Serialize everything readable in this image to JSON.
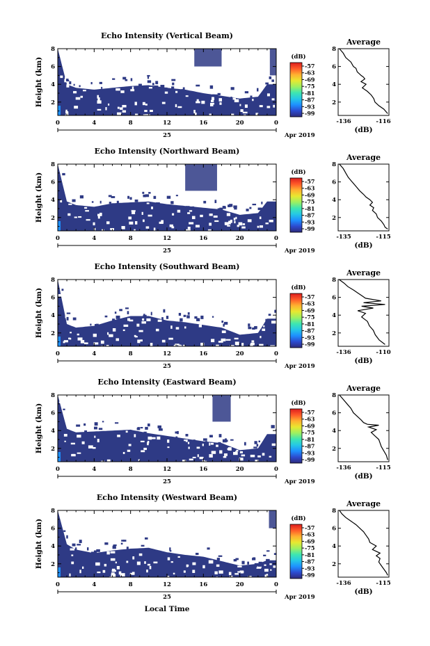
{
  "figure": {
    "xlabel": "Local Time",
    "date_day": "25",
    "date_month_year": "Apr 2019",
    "colorbar_unit": "(dB)",
    "colorbar_ticks": [
      "-57",
      "-63",
      "-69",
      "-75",
      "-81",
      "-87",
      "-93",
      "-99"
    ],
    "colors": {
      "background": "#ffffff",
      "main_echo": "#2e3a85",
      "strong_echo": "#1e90ff",
      "colormap": [
        "#2e2a7a",
        "#2c4bd0",
        "#1e90ff",
        "#25c8e6",
        "#3ee6b0",
        "#9ef060",
        "#e8e830",
        "#ffb030",
        "#ff5a28",
        "#dc1e1e"
      ]
    }
  },
  "chart_data": [
    {
      "type": "heatmap",
      "title": "Echo Intensity (Vertical Beam)",
      "ylabel": "Height (km)",
      "xlim": [
        0,
        24
      ],
      "ylim": [
        0.5,
        8
      ],
      "xticks": [
        "0",
        "4",
        "8",
        "12",
        "16",
        "20",
        "0"
      ],
      "yticks": [
        "2",
        "4",
        "6",
        "8"
      ],
      "echo_top_km": [
        [
          0,
          8.0
        ],
        [
          1,
          4.0
        ],
        [
          2,
          3.6
        ],
        [
          4,
          3.4
        ],
        [
          6,
          3.6
        ],
        [
          8,
          3.8
        ],
        [
          10,
          3.9
        ],
        [
          12,
          3.6
        ],
        [
          14,
          3.4
        ],
        [
          16,
          3.0
        ],
        [
          18,
          2.7
        ],
        [
          20,
          2.4
        ],
        [
          22,
          2.6
        ],
        [
          23,
          4.0
        ],
        [
          24,
          4.0
        ]
      ],
      "upper_echo": [
        {
          "t0": 15,
          "t1": 18,
          "top_km": 8.0,
          "bottom_km": 6.0
        },
        {
          "t0": 23.3,
          "t1": 24,
          "top_km": 8.0,
          "bottom_km": 5.0
        }
      ],
      "colorbar_range_db": [
        -99,
        -57
      ],
      "profile": {
        "title": "Average",
        "xlabel": "(dB)",
        "xlim": [
          -136,
          -116
        ],
        "xticks": [
          "-136",
          "-116"
        ],
        "ylim": [
          0.5,
          8
        ],
        "yticks": [
          "2",
          "4",
          "6",
          "8"
        ],
        "x": [
          -135.5,
          -134,
          -133,
          -131,
          -130,
          -129,
          -128.5,
          -127,
          -126,
          -125.5,
          -127,
          -125,
          -126.5,
          -124.5,
          -123,
          -122,
          -121.5,
          -120,
          -118,
          -116.5
        ],
        "y": [
          8.0,
          7.5,
          7.0,
          6.5,
          6.0,
          5.8,
          5.4,
          5.0,
          4.8,
          4.6,
          4.3,
          4.0,
          3.6,
          3.2,
          2.8,
          2.4,
          2.0,
          1.6,
          1.2,
          0.7
        ]
      }
    },
    {
      "type": "heatmap",
      "title": "Echo Intensity (Northward Beam)",
      "ylabel": "Height (km)",
      "xlim": [
        0,
        24
      ],
      "ylim": [
        0.5,
        8
      ],
      "xticks": [
        "0",
        "4",
        "8",
        "12",
        "16",
        "20",
        "0"
      ],
      "yticks": [
        "2",
        "4",
        "6",
        "8"
      ],
      "echo_top_km": [
        [
          0,
          8.0
        ],
        [
          1,
          3.8
        ],
        [
          2,
          3.4
        ],
        [
          4,
          3.2
        ],
        [
          6,
          3.6
        ],
        [
          8,
          3.7
        ],
        [
          10,
          3.8
        ],
        [
          12,
          3.5
        ],
        [
          14,
          3.3
        ],
        [
          16,
          3.1
        ],
        [
          18,
          2.9
        ],
        [
          20,
          2.3
        ],
        [
          22,
          2.5
        ],
        [
          23,
          3.8
        ],
        [
          24,
          3.8
        ]
      ],
      "upper_echo": [
        {
          "t0": 14,
          "t1": 17.5,
          "top_km": 8.0,
          "bottom_km": 5.0
        }
      ],
      "colorbar_range_db": [
        -99,
        -57
      ],
      "profile": {
        "title": "Average",
        "xlabel": "(dB)",
        "xlim": [
          -136,
          -116
        ],
        "xticks": [
          "-135",
          "-115"
        ],
        "ylim": [
          0.5,
          8
        ],
        "yticks": [
          "2",
          "4",
          "6",
          "8"
        ],
        "x": [
          -135.5,
          -134,
          -133,
          -132,
          -130.5,
          -129,
          -127.5,
          -126,
          -125,
          -123.5,
          -122.5,
          -123.5,
          -122,
          -122.5,
          -121,
          -120.5,
          -119,
          -118,
          -117.5,
          -116.5
        ],
        "y": [
          8.0,
          7.5,
          7.0,
          6.5,
          6.0,
          5.5,
          5.0,
          4.6,
          4.3,
          4.0,
          3.7,
          3.4,
          3.1,
          2.8,
          2.4,
          2.0,
          1.6,
          1.2,
          0.9,
          0.7
        ]
      }
    },
    {
      "type": "heatmap",
      "title": "Echo Intensity (Southward Beam)",
      "ylabel": "Height (km)",
      "xlim": [
        0,
        24
      ],
      "ylim": [
        0.5,
        8
      ],
      "xticks": [
        "0",
        "4",
        "8",
        "12",
        "16",
        "20",
        "0"
      ],
      "yticks": [
        "2",
        "4",
        "6",
        "8"
      ],
      "echo_top_km": [
        [
          0,
          8.0
        ],
        [
          1,
          3.0
        ],
        [
          2,
          2.6
        ],
        [
          4,
          2.8
        ],
        [
          6,
          3.4
        ],
        [
          8,
          3.9
        ],
        [
          10,
          3.9
        ],
        [
          12,
          3.4
        ],
        [
          14,
          3.2
        ],
        [
          16,
          2.9
        ],
        [
          18,
          2.6
        ],
        [
          20,
          1.8
        ],
        [
          22,
          2.0
        ],
        [
          23,
          3.6
        ],
        [
          24,
          3.6
        ]
      ],
      "upper_echo": [],
      "colorbar_range_db": [
        -99,
        -57
      ],
      "profile": {
        "title": "Average",
        "xlabel": "(dB)",
        "xlim": [
          -136,
          -110
        ],
        "xticks": [
          "-136",
          "-110"
        ],
        "ylim": [
          0.5,
          8
        ],
        "yticks": [
          "2",
          "4",
          "6",
          "8"
        ],
        "x": [
          -135.5,
          -133,
          -131,
          -128,
          -126,
          -124,
          -122,
          -114,
          -123,
          -112,
          -124,
          -118,
          -126,
          -122,
          -124,
          -121,
          -120,
          -118,
          -117,
          -115,
          -112
        ],
        "y": [
          8.0,
          7.6,
          7.2,
          6.8,
          6.5,
          6.2,
          5.9,
          5.6,
          5.4,
          5.2,
          5.0,
          4.8,
          4.5,
          4.2,
          3.8,
          3.3,
          2.8,
          2.3,
          1.8,
          1.2,
          0.7
        ]
      }
    },
    {
      "type": "heatmap",
      "title": "Echo Intensity (Eastward Beam)",
      "ylabel": "Height (km)",
      "xlim": [
        0,
        24
      ],
      "ylim": [
        0.5,
        8
      ],
      "xticks": [
        "0",
        "4",
        "8",
        "12",
        "16",
        "20",
        "0"
      ],
      "yticks": [
        "2",
        "4",
        "6",
        "8"
      ],
      "echo_top_km": [
        [
          0,
          8.0
        ],
        [
          1,
          4.2
        ],
        [
          2,
          3.8
        ],
        [
          4,
          3.9
        ],
        [
          6,
          4.0
        ],
        [
          8,
          4.1
        ],
        [
          10,
          3.7
        ],
        [
          12,
          3.4
        ],
        [
          14,
          3.1
        ],
        [
          16,
          2.8
        ],
        [
          18,
          2.6
        ],
        [
          20,
          1.8
        ],
        [
          22,
          2.0
        ],
        [
          23,
          3.6
        ],
        [
          24,
          3.6
        ]
      ],
      "upper_echo": [
        {
          "t0": 17,
          "t1": 19,
          "top_km": 8.0,
          "bottom_km": 5.0
        }
      ],
      "colorbar_range_db": [
        -99,
        -57
      ],
      "profile": {
        "title": "Average",
        "xlabel": "(dB)",
        "xlim": [
          -136,
          -116
        ],
        "xticks": [
          "-136",
          "-115"
        ],
        "ylim": [
          0.5,
          8
        ],
        "yticks": [
          "2",
          "4",
          "6",
          "8"
        ],
        "x": [
          -135.5,
          -134,
          -132.5,
          -131,
          -130,
          -128.5,
          -127,
          -126,
          -124.5,
          -120,
          -124,
          -121,
          -123,
          -121.5,
          -120,
          -119.5,
          -119,
          -118,
          -117,
          -116.5
        ],
        "y": [
          8.0,
          7.5,
          7.0,
          6.5,
          6.0,
          5.6,
          5.2,
          4.9,
          4.7,
          4.6,
          4.4,
          4.1,
          3.8,
          3.4,
          3.0,
          2.6,
          2.2,
          1.7,
          1.2,
          0.7
        ]
      }
    },
    {
      "type": "heatmap",
      "title": "Echo Intensity (Westward Beam)",
      "ylabel": "Height (km)",
      "xlim": [
        0,
        24
      ],
      "ylim": [
        0.5,
        8
      ],
      "xticks": [
        "0",
        "4",
        "8",
        "12",
        "16",
        "20",
        "0"
      ],
      "yticks": [
        "2",
        "4",
        "6",
        "8"
      ],
      "echo_top_km": [
        [
          0,
          8.0
        ],
        [
          1,
          4.2
        ],
        [
          2,
          3.6
        ],
        [
          4,
          3.2
        ],
        [
          6,
          3.5
        ],
        [
          8,
          3.7
        ],
        [
          10,
          3.8
        ],
        [
          12,
          3.3
        ],
        [
          14,
          3.0
        ],
        [
          16,
          2.8
        ],
        [
          18,
          2.3
        ],
        [
          20,
          1.8
        ],
        [
          22,
          2.0
        ],
        [
          23,
          2.4
        ],
        [
          24,
          2.4
        ]
      ],
      "upper_echo": [
        {
          "t0": 23.2,
          "t1": 24,
          "top_km": 8.0,
          "bottom_km": 6.0
        }
      ],
      "colorbar_range_db": [
        -99,
        -57
      ],
      "profile": {
        "title": "Average",
        "xlabel": "(dB)",
        "xlim": [
          -136,
          -116
        ],
        "xticks": [
          "-136",
          "-115"
        ],
        "ylim": [
          0.5,
          8
        ],
        "yticks": [
          "2",
          "4",
          "6",
          "8"
        ],
        "x": [
          -135.5,
          -134.5,
          -133,
          -131,
          -129,
          -127.5,
          -126,
          -125,
          -124,
          -123.5,
          -121,
          -122.5,
          -119.5,
          -121,
          -119.5,
          -120,
          -119,
          -118,
          -117,
          -116.5
        ],
        "y": [
          8.0,
          7.6,
          7.2,
          6.8,
          6.4,
          6.0,
          5.6,
          5.2,
          4.8,
          4.4,
          4.0,
          3.6,
          3.2,
          2.9,
          2.6,
          2.2,
          1.8,
          1.4,
          1.0,
          0.7
        ]
      }
    }
  ]
}
